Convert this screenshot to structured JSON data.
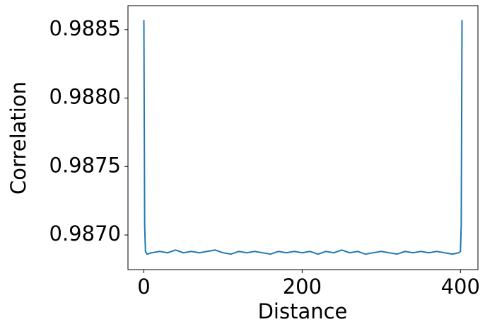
{
  "chart_data": {
    "type": "line",
    "xlabel": "Distance",
    "ylabel": "Correlation",
    "x": [
      0,
      1,
      2,
      4,
      10,
      20,
      30,
      40,
      50,
      60,
      70,
      80,
      90,
      100,
      110,
      120,
      130,
      140,
      150,
      160,
      170,
      180,
      190,
      200,
      210,
      220,
      230,
      240,
      250,
      260,
      270,
      280,
      290,
      300,
      310,
      320,
      330,
      340,
      350,
      360,
      370,
      380,
      390,
      398,
      400,
      401,
      402
    ],
    "series": [
      {
        "color": "#1f77b4",
        "values": [
          0.98857,
          0.98707,
          0.98688,
          0.98686,
          0.98687,
          0.98688,
          0.98687,
          0.98689,
          0.98687,
          0.98688,
          0.98687,
          0.98688,
          0.98689,
          0.98687,
          0.98686,
          0.98688,
          0.98687,
          0.98688,
          0.98687,
          0.98686,
          0.98688,
          0.98687,
          0.98688,
          0.98687,
          0.98688,
          0.98686,
          0.98688,
          0.98687,
          0.98689,
          0.98687,
          0.98688,
          0.98686,
          0.98687,
          0.98688,
          0.98687,
          0.98686,
          0.98688,
          0.98687,
          0.98688,
          0.98687,
          0.98688,
          0.98687,
          0.98686,
          0.98687,
          0.98688,
          0.98707,
          0.98857
        ]
      }
    ],
    "xlim": [
      -20.1,
      422.1
    ],
    "xticks": [
      0,
      200,
      400
    ],
    "ylim": [
      0.986747,
      0.988675
    ],
    "yticks": [
      {
        "value": 0.987,
        "label": "0.9870"
      },
      0.9875,
      {
        "value": 0.988,
        "label": "0.9880"
      },
      0.9885
    ]
  }
}
